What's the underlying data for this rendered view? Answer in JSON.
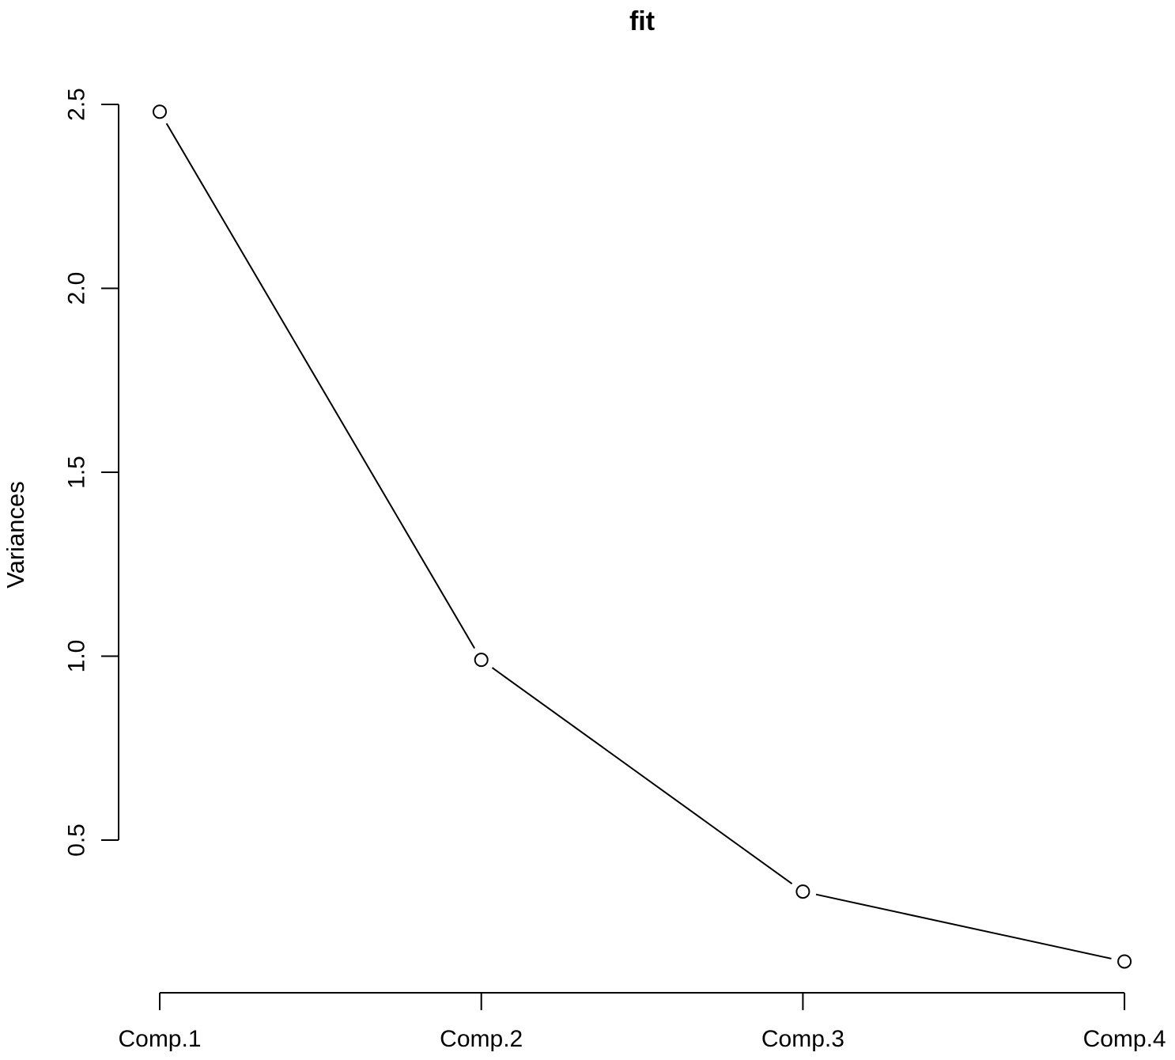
{
  "figure": {
    "background_color": "#ffffff",
    "foreground_color": "#000000"
  },
  "chart_data": {
    "type": "line",
    "style": "r-base-screeplot",
    "title": "fit",
    "xlabel": "",
    "ylabel": "Variances",
    "categories": [
      "Comp.1",
      "Comp.2",
      "Comp.3",
      "Comp.4"
    ],
    "values": [
      2.48,
      0.99,
      0.36,
      0.17
    ],
    "ytick_values": [
      2.5,
      2.0,
      1.5,
      1.0,
      0.5
    ],
    "ytick_labels": [
      "2.5",
      "2.0",
      "1.5",
      "1.0",
      "0.5"
    ],
    "ylim": [
      0.17,
      2.5
    ],
    "marker": "open-circle",
    "marker_fill": "#ffffff",
    "line_color": "#000000",
    "grid": false,
    "legend_position": "none"
  }
}
